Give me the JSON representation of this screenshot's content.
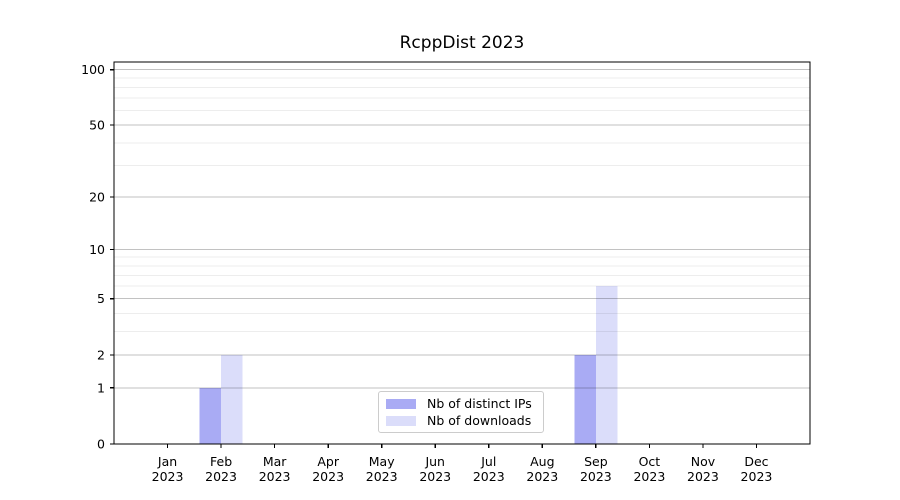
{
  "title": "RcppDist 2023",
  "chart_data": {
    "type": "bar",
    "title": "RcppDist 2023",
    "xlabel": "",
    "ylabel": "",
    "yscale": "log1p",
    "ylim": [
      0,
      110
    ],
    "grid": true,
    "legend_position": "lower center",
    "x_tick_labels": [
      [
        "Jan",
        "2023"
      ],
      [
        "Feb",
        "2023"
      ],
      [
        "Mar",
        "2023"
      ],
      [
        "Apr",
        "2023"
      ],
      [
        "May",
        "2023"
      ],
      [
        "Jun",
        "2023"
      ],
      [
        "Jul",
        "2023"
      ],
      [
        "Aug",
        "2023"
      ],
      [
        "Sep",
        "2023"
      ],
      [
        "Oct",
        "2023"
      ],
      [
        "Nov",
        "2023"
      ],
      [
        "Dec",
        "2023"
      ]
    ],
    "y_major_ticks": [
      0,
      1,
      2,
      5,
      10,
      20,
      50,
      100
    ],
    "y_minor_gridlines": [
      3,
      4,
      6,
      7,
      8,
      9,
      30,
      40,
      60,
      70,
      80,
      90
    ],
    "series": [
      {
        "name": "Nb of distinct IPs",
        "color": "#a9abf4",
        "values": [
          0,
          1,
          0,
          0,
          0,
          0,
          0,
          0,
          2,
          0,
          0,
          0
        ]
      },
      {
        "name": "Nb of downloads",
        "color": "#dbddfa",
        "values": [
          0,
          2,
          0,
          0,
          0,
          0,
          0,
          0,
          6,
          0,
          0,
          0
        ]
      }
    ]
  },
  "legend": {
    "items": [
      {
        "label": "Nb of distinct IPs",
        "color": "#a9abf4"
      },
      {
        "label": "Nb of downloads",
        "color": "#dbddfa"
      }
    ]
  },
  "colors": {
    "background": "#ffffff",
    "axis": "#000000",
    "tick_text": "#000000",
    "grid_major": "rgba(0,0,0,0.24)",
    "grid_minor": "rgba(0,0,0,0.07)",
    "legend_border": "#cccccc"
  }
}
